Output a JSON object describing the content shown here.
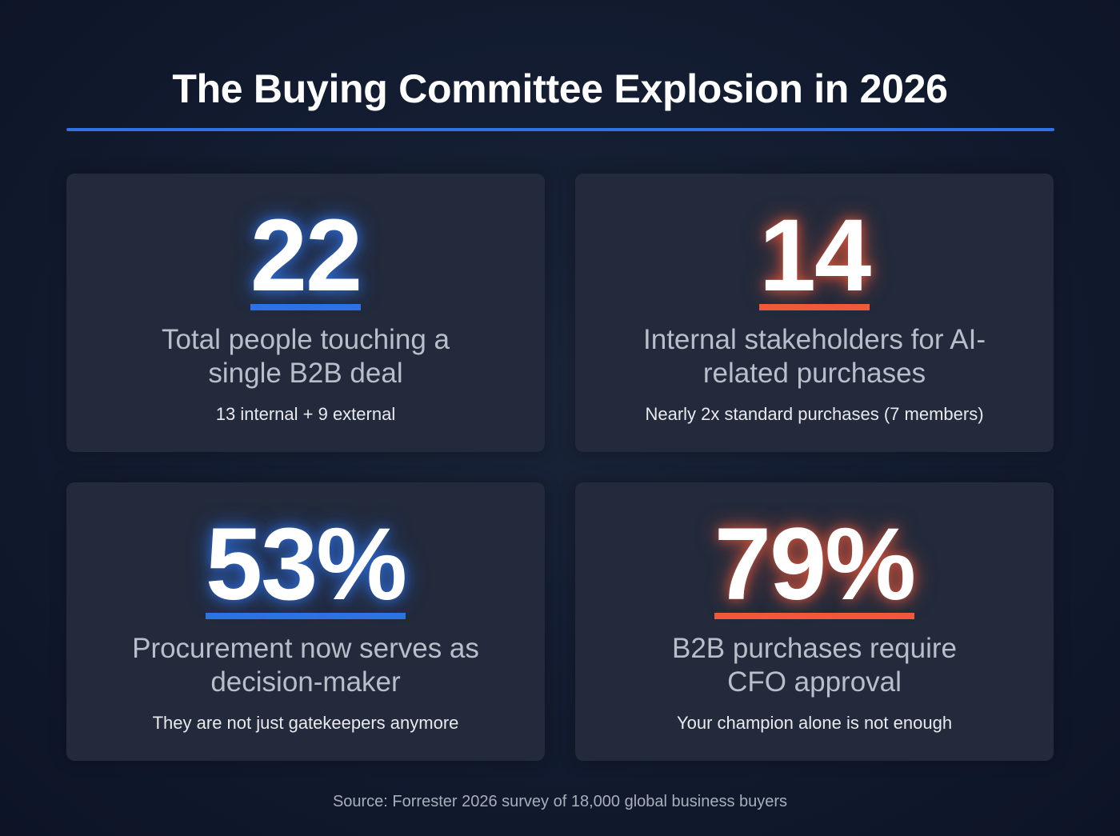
{
  "title": "The Buying Committee Explosion in 2026",
  "colors": {
    "blue": "#2f72e6",
    "orange": "#f05a3a",
    "background": "#121b2f",
    "card": "#222a3b"
  },
  "stats": [
    {
      "value": "22",
      "label": "Total people touching a single B2B deal",
      "note": "13 internal + 9 external",
      "accent": "blue"
    },
    {
      "value": "14",
      "label": "Internal stakeholders for AI-related purchases",
      "note": "Nearly 2x standard purchases (7 members)",
      "accent": "orange"
    },
    {
      "value": "53%",
      "label": "Procurement now serves as decision-maker",
      "note": "They are not just gatekeepers anymore",
      "accent": "blue"
    },
    {
      "value": "79%",
      "label": "B2B purchases require CFO approval",
      "note": "Your champion alone is not enough",
      "accent": "orange"
    }
  ],
  "source": "Source: Forrester 2026 survey of 18,000 global business buyers"
}
